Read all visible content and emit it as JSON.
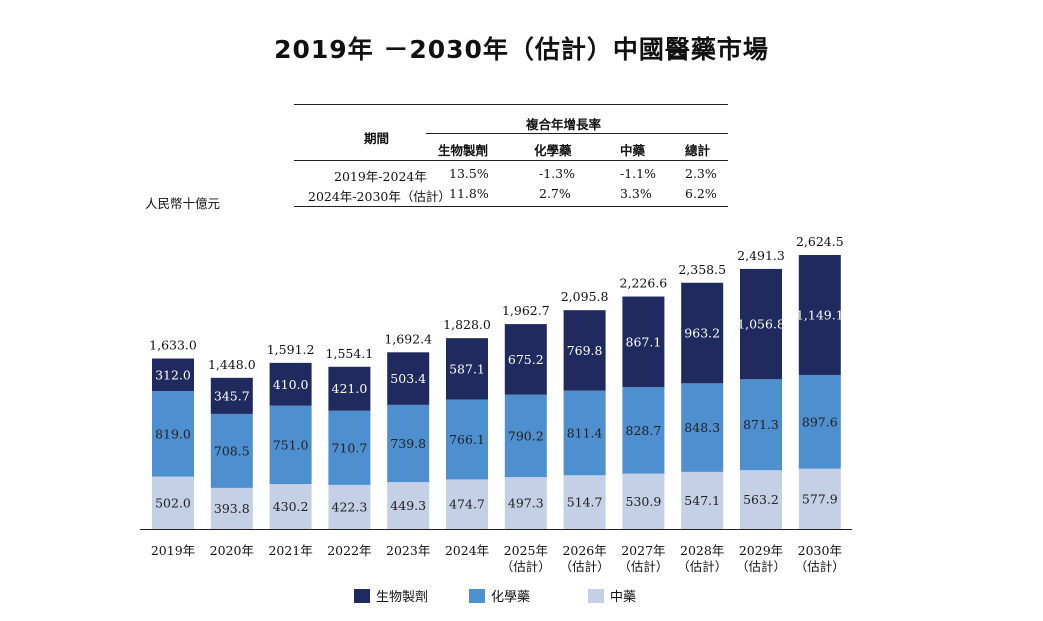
{
  "title": "2019年 －2030年（估計）中國醫藥市場",
  "unit_label": "人民幣十億元",
  "cagr_table": {
    "header_period": "期間",
    "header_group": "複合年增長率",
    "columns": [
      "生物製劑",
      "化學藥",
      "中藥",
      "總計"
    ],
    "rows": [
      {
        "period": "2019年-2024年",
        "values": [
          "13.5%",
          "-1.3%",
          "-1.1%",
          "2.3%"
        ]
      },
      {
        "period": "2024年-2030年（估計）",
        "values": [
          "11.8%",
          "2.7%",
          "3.3%",
          "6.2%"
        ]
      }
    ]
  },
  "colors": {
    "bio": "#1f2a5e",
    "chem": "#4e8fcf",
    "tcm": "#c3d0e6"
  },
  "chart_data": {
    "type": "bar",
    "stacked": true,
    "title": "2019年 －2030年（估計）中國醫藥市場",
    "ylabel": "人民幣十億元",
    "ylim": [
      0,
      2700
    ],
    "categories": [
      [
        "2019年"
      ],
      [
        "2020年"
      ],
      [
        "2021年"
      ],
      [
        "2022年"
      ],
      [
        "2023年"
      ],
      [
        "2024年"
      ],
      [
        "2025年",
        "（估計）"
      ],
      [
        "2026年",
        "（估計）"
      ],
      [
        "2027年",
        "（估計）"
      ],
      [
        "2028年",
        "（估計）"
      ],
      [
        "2029年",
        "（估計）"
      ],
      [
        "2030年",
        "（估計）"
      ]
    ],
    "series": [
      {
        "name": "中藥",
        "key": "tcm",
        "values": [
          502.0,
          393.8,
          430.2,
          422.3,
          449.3,
          474.7,
          497.3,
          514.7,
          530.9,
          547.1,
          563.2,
          577.9
        ]
      },
      {
        "name": "化學藥",
        "key": "chem",
        "values": [
          819.0,
          708.5,
          751.0,
          710.7,
          739.8,
          766.1,
          790.2,
          811.4,
          828.7,
          848.3,
          871.3,
          897.6
        ]
      },
      {
        "name": "生物製劑",
        "key": "bio",
        "values": [
          312.0,
          345.7,
          410.0,
          421.0,
          503.4,
          587.1,
          675.2,
          769.8,
          867.1,
          963.2,
          1056.8,
          1149.1
        ]
      }
    ],
    "totals": [
      1633.0,
      1448.0,
      1591.2,
      1554.1,
      1692.4,
      1828.0,
      1962.7,
      2095.8,
      2226.6,
      2358.5,
      2491.3,
      2624.5
    ],
    "legend": [
      "生物製劑",
      "化學藥",
      "中藥"
    ],
    "legend_position": "bottom-center",
    "grid": false
  }
}
